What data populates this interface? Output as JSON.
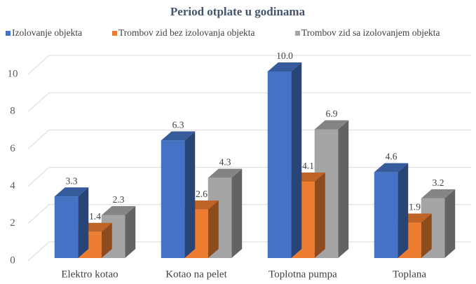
{
  "chart_data": {
    "type": "bar3d",
    "title": "Period otplate u godinama",
    "categories": [
      "Elektro kotao",
      "Kotao na pelet",
      "Toplotna pumpa",
      "Toplana"
    ],
    "series": [
      {
        "name": "Izolovanje objekta",
        "color": "#4472c4",
        "values": [
          3.3,
          6.3,
          10.0,
          4.6
        ],
        "value_labels": [
          "3.3",
          "6.3",
          "10.0",
          "4.6"
        ]
      },
      {
        "name": "Trombov zid bez izolovanja objekta",
        "color": "#ed7d31",
        "values": [
          1.4,
          2.6,
          4.1,
          1.9
        ]
      },
      {
        "name": "Trombov zid sa izolovanjem objekta",
        "color": "#a5a5a5",
        "values": [
          2.3,
          4.3,
          6.9,
          3.2
        ]
      }
    ],
    "ylim": [
      0,
      10
    ],
    "yticks": [
      0,
      2,
      4,
      6,
      8,
      10
    ],
    "grid": true,
    "legend": "top"
  }
}
